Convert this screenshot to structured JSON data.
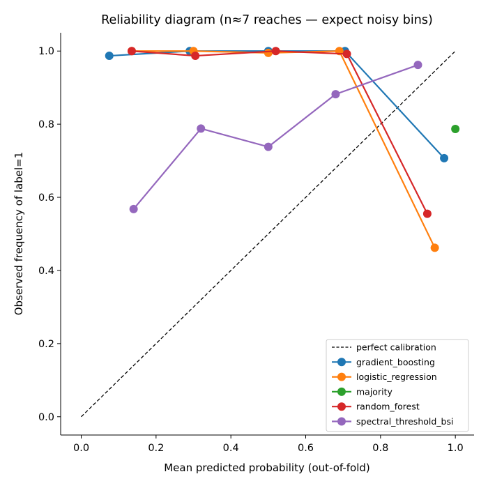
{
  "chart_data": {
    "type": "line",
    "title": "Reliability diagram (n≈7 reaches — expect noisy bins)",
    "xlabel": "Mean predicted probability (out-of-fold)",
    "ylabel": "Observed frequency of label=1",
    "xlim": [
      -0.055,
      1.05
    ],
    "ylim": [
      -0.05,
      1.05
    ],
    "xticks": [
      {
        "value": 0.0,
        "label": "0.0"
      },
      {
        "value": 0.2,
        "label": "0.2"
      },
      {
        "value": 0.4,
        "label": "0.4"
      },
      {
        "value": 0.6,
        "label": "0.6"
      },
      {
        "value": 0.8,
        "label": "0.8"
      },
      {
        "value": 1.0,
        "label": "1.0"
      }
    ],
    "yticks": [
      {
        "value": 0.0,
        "label": "0.0"
      },
      {
        "value": 0.2,
        "label": "0.2"
      },
      {
        "value": 0.4,
        "label": "0.4"
      },
      {
        "value": 0.6,
        "label": "0.6"
      },
      {
        "value": 0.8,
        "label": "0.8"
      },
      {
        "value": 1.0,
        "label": "1.0"
      }
    ],
    "grid": false,
    "legend_position": "lower-right",
    "reference_line": {
      "name": "perfect calibration",
      "x": [
        0,
        1
      ],
      "y": [
        0,
        1
      ],
      "color": "#000000",
      "style": "dashed"
    },
    "series": [
      {
        "name": "gradient_boosting",
        "color": "#1f77b4",
        "x": [
          0.075,
          0.29,
          0.5,
          0.705,
          0.97
        ],
        "y": [
          0.987,
          1.0,
          1.0,
          1.0,
          0.707
        ]
      },
      {
        "name": "logistic_regression",
        "color": "#ff7f0e",
        "x": [
          0.135,
          0.3,
          0.5,
          0.69,
          0.945
        ],
        "y": [
          1.0,
          1.0,
          0.995,
          1.0,
          0.462
        ]
      },
      {
        "name": "majority",
        "color": "#2ca02c",
        "x": [
          1.0
        ],
        "y": [
          0.787
        ]
      },
      {
        "name": "random_forest",
        "color": "#d62728",
        "x": [
          0.135,
          0.305,
          0.52,
          0.71,
          0.925
        ],
        "y": [
          1.0,
          0.987,
          1.0,
          0.992,
          0.555
        ]
      },
      {
        "name": "spectral_threshold_bsi",
        "color": "#9467bd",
        "x": [
          0.14,
          0.32,
          0.5,
          0.68,
          0.9
        ],
        "y": [
          0.568,
          0.788,
          0.738,
          0.882,
          0.962
        ]
      }
    ]
  }
}
